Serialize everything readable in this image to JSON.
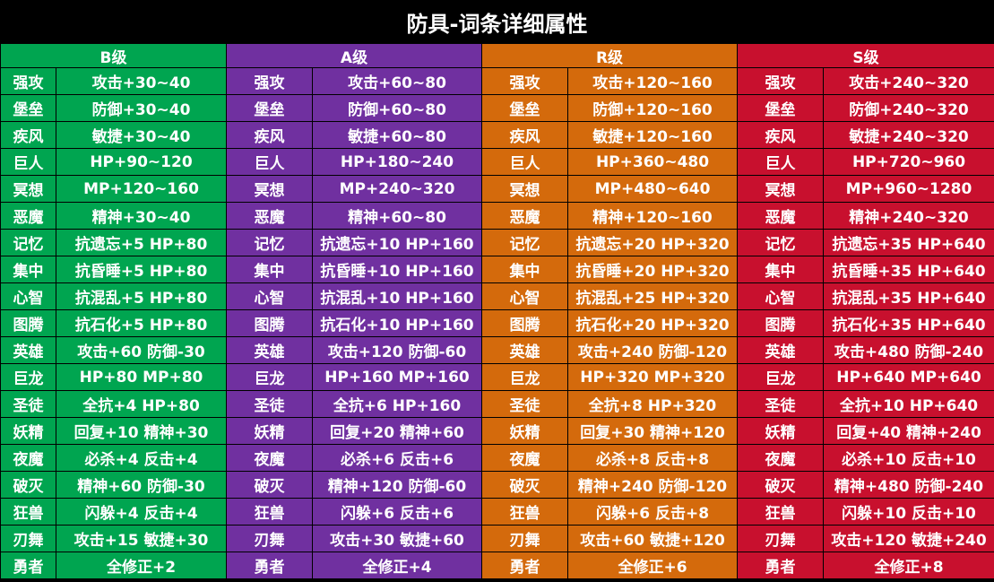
{
  "title": "防具-词条详细属性",
  "colors": {
    "B": "#00A550",
    "A": "#7030A0",
    "R": "#D46A0C",
    "S": "#C8102E"
  },
  "tiers": [
    "B级",
    "A级",
    "R级",
    "S级"
  ],
  "rows": [
    {
      "name": "强攻",
      "B": "攻击+30~40",
      "A": "攻击+60~80",
      "R": "攻击+120~160",
      "S": "攻击+240~320"
    },
    {
      "name": "堡垒",
      "B": "防御+30~40",
      "A": "防御+60~80",
      "R": "防御+120~160",
      "S": "防御+240~320"
    },
    {
      "name": "疾风",
      "B": "敏捷+30~40",
      "A": "敏捷+60~80",
      "R": "敏捷+120~160",
      "S": "敏捷+240~320"
    },
    {
      "name": "巨人",
      "B": "HP+90~120",
      "A": "HP+180~240",
      "R": "HP+360~480",
      "S": "HP+720~960"
    },
    {
      "name": "冥想",
      "B": "MP+120~160",
      "A": "MP+240~320",
      "R": "MP+480~640",
      "S": "MP+960~1280"
    },
    {
      "name": "恶魔",
      "B": "精神+30~40",
      "A": "精神+60~80",
      "R": "精神+120~160",
      "S": "精神+240~320"
    },
    {
      "name": "记忆",
      "B": "抗遗忘+5 HP+80",
      "A": "抗遗忘+10 HP+160",
      "R": "抗遗忘+20 HP+320",
      "S": "抗遗忘+35 HP+640"
    },
    {
      "name": "集中",
      "B": "抗昏睡+5 HP+80",
      "A": "抗昏睡+10 HP+160",
      "R": "抗昏睡+20 HP+320",
      "S": "抗昏睡+35 HP+640"
    },
    {
      "name": "心智",
      "B": "抗混乱+5 HP+80",
      "A": "抗混乱+10 HP+160",
      "R": "抗混乱+25 HP+320",
      "S": "抗混乱+35 HP+640"
    },
    {
      "name": "图腾",
      "B": "抗石化+5 HP+80",
      "A": "抗石化+10 HP+160",
      "R": "抗石化+20 HP+320",
      "S": "抗石化+35 HP+640"
    },
    {
      "name": "英雄",
      "B": "攻击+60 防御-30",
      "A": "攻击+120 防御-60",
      "R": "攻击+240 防御-120",
      "S": "攻击+480 防御-240"
    },
    {
      "name": "巨龙",
      "B": "HP+80 MP+80",
      "A": "HP+160 MP+160",
      "R": "HP+320 MP+320",
      "S": "HP+640 MP+640"
    },
    {
      "name": "圣徒",
      "B": "全抗+4 HP+80",
      "A": "全抗+6 HP+160",
      "R": "全抗+8 HP+320",
      "S": "全抗+10 HP+640"
    },
    {
      "name": "妖精",
      "B": "回复+10 精神+30",
      "A": "回复+20 精神+60",
      "R": "回复+30 精神+120",
      "S": "回复+40 精神+240"
    },
    {
      "name": "夜魔",
      "B": "必杀+4 反击+4",
      "A": "必杀+6 反击+6",
      "R": "必杀+8 反击+8",
      "S": "必杀+10 反击+10"
    },
    {
      "name": "破灭",
      "B": "精神+60 防御-30",
      "A": "精神+120 防御-60",
      "R": "精神+240 防御-120",
      "S": "精神+480  防御-240"
    },
    {
      "name": "狂兽",
      "B": "闪躲+4 反击+4",
      "A": "闪躲+6 反击+6",
      "R": "闪躲+6 反击+8",
      "S": "闪躲+10 反击+10"
    },
    {
      "name": "刃舞",
      "B": "攻击+15 敏捷+30",
      "A": "攻击+30 敏捷+60",
      "R": "攻击+60 敏捷+120",
      "S": "攻击+120 敏捷+240"
    },
    {
      "name": "勇者",
      "B": "全修正+2",
      "A": "全修正+4",
      "R": "全修正+6",
      "S": "全修正+8"
    }
  ]
}
